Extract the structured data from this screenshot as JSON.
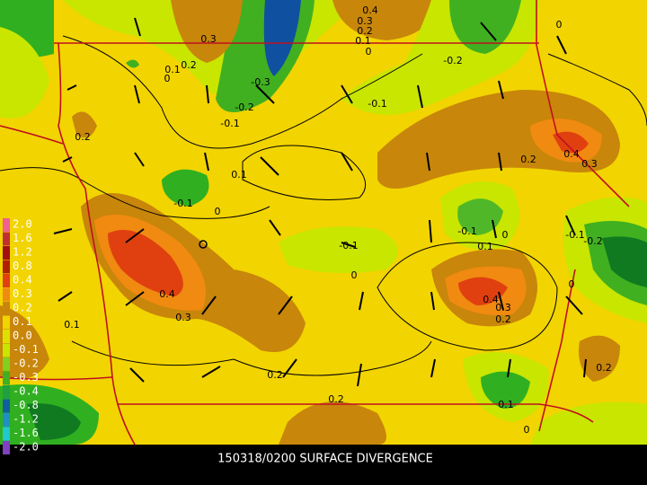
{
  "title": "150318/0200 SURFACE DIVERGENCE",
  "legend": [
    "2.0",
    "1.6",
    "1.2",
    "0.8",
    "0.4",
    "0.3",
    "0.2",
    "0.1",
    "0.0",
    "-0.1",
    "-0.2",
    "-0.3",
    "-0.4",
    "-0.8",
    "-1.2",
    "-1.6",
    "-2.0"
  ],
  "contour_labels": [
    "0.3",
    "0.4",
    "0.3",
    "0.2",
    "0.1",
    "0",
    "0",
    "-0.2",
    "0.2",
    "0.1",
    "0",
    "-0.3",
    "-0.2",
    "-0.1",
    "-0.1",
    "0.2",
    "0.1",
    "0.2",
    "0.4",
    "0.3",
    "-0.1",
    "0",
    "-0.1",
    "0",
    "0.1",
    "-0.1",
    "-0.2",
    "-0.1",
    "0",
    "0.4",
    "0.3",
    "0",
    "0.4",
    "0.3",
    "0.2",
    "0.1",
    "0.2",
    "0.2",
    "0.2",
    "0.1",
    "0"
  ]
}
